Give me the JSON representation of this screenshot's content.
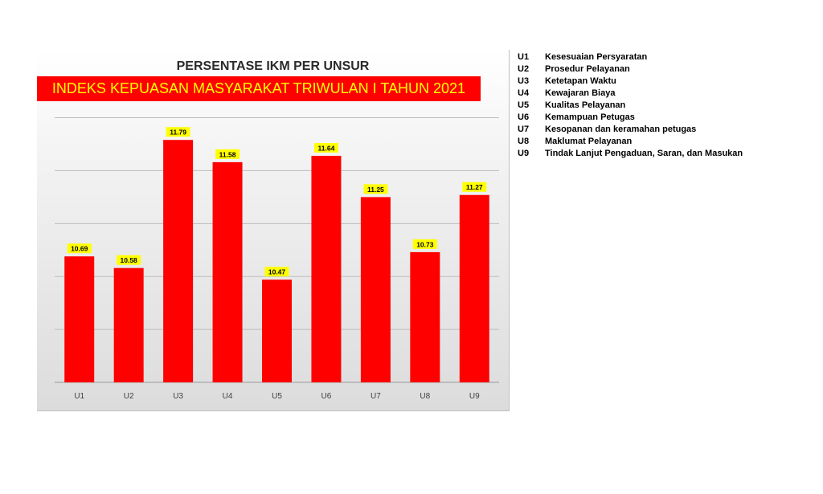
{
  "chart_data": {
    "type": "bar",
    "title": "PERSENTASE IKM PER UNSUR",
    "subtitle": "INDEKS KEPUASAN MASYARAKAT TRIWULAN I TAHUN 2021",
    "categories": [
      "U1",
      "U2",
      "U3",
      "U4",
      "U5",
      "U6",
      "U7",
      "U8",
      "U9"
    ],
    "values": [
      10.69,
      10.58,
      11.79,
      11.58,
      10.47,
      11.64,
      11.25,
      10.73,
      11.27
    ],
    "data_labels": [
      "10.69",
      "10.58",
      "11.79",
      "11.58",
      "10.47",
      "11.64",
      "11.25",
      "10.73",
      "11.27"
    ],
    "ylim": [
      9.5,
      12.3
    ],
    "grid": true,
    "bar_color": "#ff0000",
    "label_bg_color": "#ffff00"
  },
  "legend": [
    {
      "code": "U1",
      "label": "Kesesuaian Persyaratan"
    },
    {
      "code": "U2",
      "label": "Prosedur Pelayanan"
    },
    {
      "code": "U3",
      "label": "Ketetapan Waktu"
    },
    {
      "code": "U4",
      "label": "Kewajaran Biaya"
    },
    {
      "code": "U5",
      "label": "Kualitas Pelayanan"
    },
    {
      "code": "U6",
      "label": "Kemampuan Petugas"
    },
    {
      "code": "U7",
      "label": "Kesopanan dan keramahan petugas"
    },
    {
      "code": "U8",
      "label": "Maklumat Pelayanan"
    },
    {
      "code": "U9",
      "label": "Tindak Lanjut Pengaduan, Saran, dan Masukan"
    }
  ]
}
